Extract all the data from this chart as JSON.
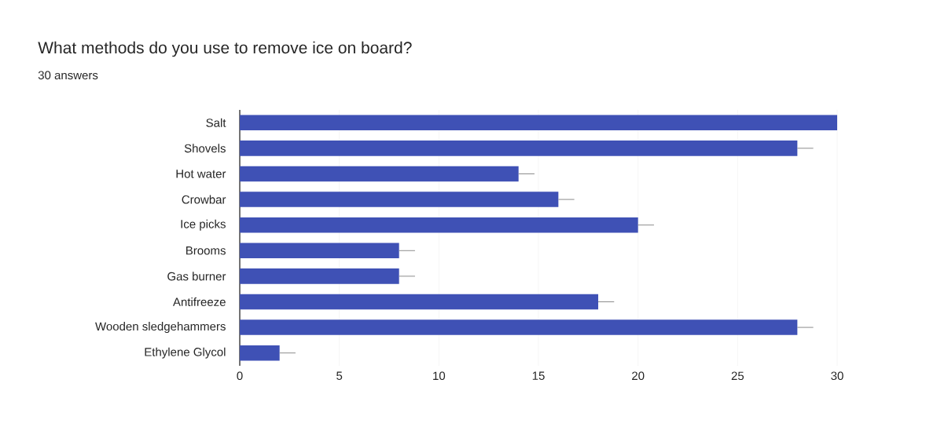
{
  "chart_data": {
    "type": "bar",
    "orientation": "horizontal",
    "title": "What methods do you use to remove ice on board?",
    "subtitle": "30 answers",
    "categories": [
      "Salt",
      "Shovels",
      "Hot water",
      "Crowbar",
      "Ice picks",
      "Brooms",
      "Gas burner",
      "Antifreeze",
      "Wooden sledgehammers",
      "Ethylene Glycol"
    ],
    "values": [
      30,
      28,
      14,
      16,
      20,
      8,
      8,
      18,
      28,
      2
    ],
    "errors": [
      null,
      [
        28,
        28.8
      ],
      [
        14,
        14.8
      ],
      [
        16,
        16.8
      ],
      [
        20,
        20.8
      ],
      [
        8,
        8.8
      ],
      [
        8,
        8.8
      ],
      [
        18,
        18.8
      ],
      [
        28,
        28.8
      ],
      [
        2,
        2.8
      ]
    ],
    "color": "#3f51b5",
    "xlim": [
      0,
      30
    ],
    "xticks": [
      0,
      5,
      10,
      15,
      20,
      25,
      30
    ],
    "grid": "x"
  }
}
